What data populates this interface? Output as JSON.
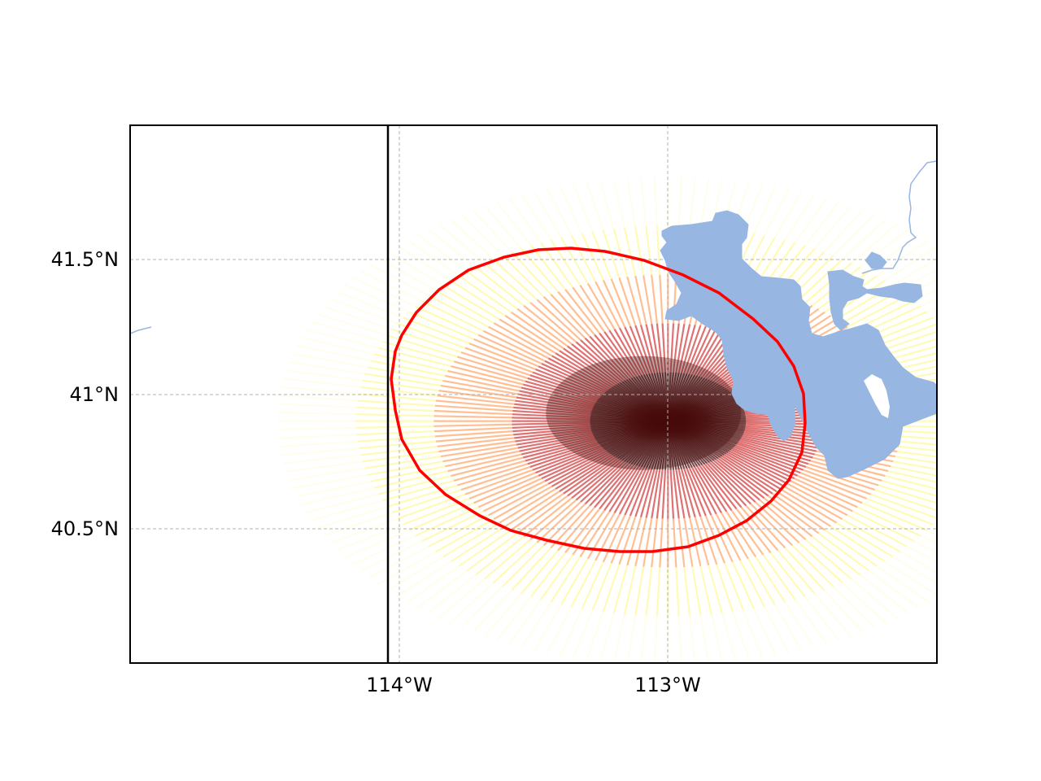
{
  "map": {
    "x_ticks": [
      {
        "lon": -114.0,
        "label": "114°W"
      },
      {
        "lon": -113.0,
        "label": "113°W"
      }
    ],
    "y_ticks": [
      {
        "lat": 41.5,
        "label": "41.5°N"
      },
      {
        "lat": 41.0,
        "label": "41°N"
      },
      {
        "lat": 40.5,
        "label": "40.5°N"
      }
    ],
    "extent": {
      "lon_min": -115.0,
      "lon_max": -112.0,
      "lat_min": 40.0,
      "lat_max": 42.0
    },
    "state_boundary_lon": -114.04,
    "grid": true,
    "colors": {
      "water": "#97b6e1",
      "ellipse": "#ff0000",
      "boundary": "#000000",
      "grid": "#b0b0b0",
      "heat_low": "#ffff00",
      "heat_mid": "#ff0000",
      "heat_high": "#000000"
    },
    "heat_center": {
      "lon": -113.0,
      "lat": 40.9
    },
    "ellipse_feature": {
      "center_lon": -113.0,
      "center_lat": 40.98
    }
  }
}
